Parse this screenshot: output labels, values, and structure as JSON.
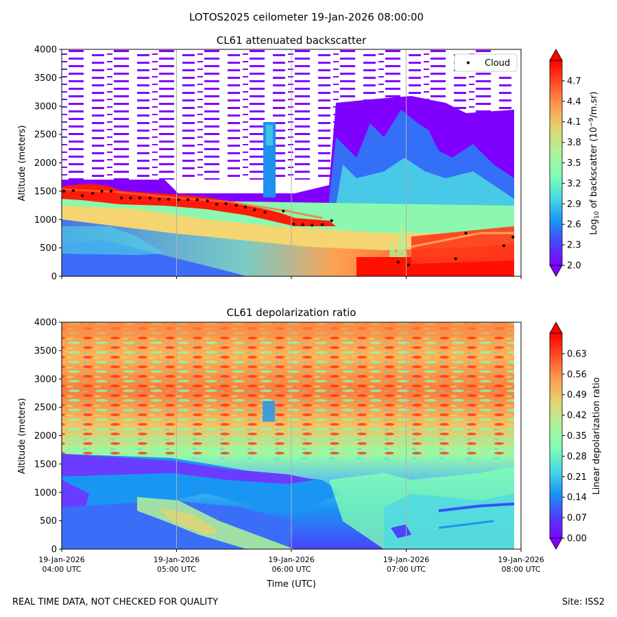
{
  "figure": {
    "suptitle": "LOTOS2025 ceilometer 19-Jan-2026 08:00:00",
    "footer_left": "REAL TIME DATA, NOT CHECKED FOR QUALITY",
    "footer_right": "Site: ISS2",
    "xlabel": "Time (UTC)"
  },
  "colors": {
    "rainbow": [
      "#8000ff",
      "#4a44fc",
      "#1996f3",
      "#4cd8e4",
      "#80ffb4",
      "#b2f396",
      "#e5d36f",
      "#ff9a4d",
      "#ff4d27",
      "#ff0000"
    ],
    "cloud_marker": "#000000",
    "grid": "#b0b0b0"
  },
  "chart_data": [
    {
      "type": "heatmap",
      "title": "CL61 attenuated backscatter",
      "ylabel": "Altitude (meters)",
      "xlabel": "",
      "x_ticks": [
        "19-Jan-2026\n04:00 UTC",
        "19-Jan-2026\n05:00 UTC",
        "19-Jan-2026\n06:00 UTC",
        "19-Jan-2026\n07:00 UTC",
        "19-Jan-2026\n08:00 UTC"
      ],
      "x_tick_hours": [
        4,
        5,
        6,
        7,
        8
      ],
      "xlim_hours": [
        4,
        8
      ],
      "y_ticks": [
        0,
        500,
        1000,
        1500,
        2000,
        2500,
        3000,
        3500,
        4000
      ],
      "ylim": [
        0,
        4000
      ],
      "colorbar": {
        "label": "Log10 of backscatter (10^-9/m.sr)",
        "ticks": [
          2.0,
          2.3,
          2.6,
          2.9,
          3.2,
          3.5,
          3.8,
          4.1,
          4.4,
          4.7
        ],
        "range": [
          2.0,
          5.0
        ],
        "extend": "both"
      },
      "legend": {
        "entries": [
          "Cloud"
        ],
        "location": "top-right"
      },
      "cloud_base": {
        "time_hours": [
          4.02,
          4.1,
          4.18,
          4.27,
          4.35,
          4.43,
          4.52,
          4.6,
          4.68,
          4.77,
          4.85,
          4.93,
          5.02,
          5.1,
          5.18,
          5.27,
          5.35,
          5.43,
          5.52,
          5.6,
          5.68,
          5.77,
          5.93,
          6.02,
          6.1,
          6.18,
          6.27,
          6.35,
          6.35,
          6.02,
          6.93,
          7.02,
          7.43,
          7.52,
          7.85,
          7.93
        ],
        "altitude_m": [
          1500,
          1510,
          1420,
          1460,
          1500,
          1500,
          1380,
          1380,
          1380,
          1380,
          1360,
          1360,
          1350,
          1350,
          1350,
          1330,
          1270,
          1280,
          1250,
          1220,
          1170,
          1130,
          1150,
          920,
          910,
          900,
          910,
          980,
          980,
          920,
          250,
          200,
          310,
          760,
          540,
          690
        ]
      }
    },
    {
      "type": "heatmap",
      "title": "CL61 depolarization ratio",
      "ylabel": "Altitude (meters)",
      "xlabel": "Time (UTC)",
      "x_ticks": [
        "19-Jan-2026\n04:00 UTC",
        "19-Jan-2026\n05:00 UTC",
        "19-Jan-2026\n06:00 UTC",
        "19-Jan-2026\n07:00 UTC",
        "19-Jan-2026\n08:00 UTC"
      ],
      "x_tick_hours": [
        4,
        5,
        6,
        7,
        8
      ],
      "xlim_hours": [
        4,
        8
      ],
      "y_ticks": [
        0,
        500,
        1000,
        1500,
        2000,
        2500,
        3000,
        3500,
        4000
      ],
      "ylim": [
        0,
        4000
      ],
      "colorbar": {
        "label": "Linear depolarization ratio",
        "ticks": [
          0.0,
          0.07,
          0.14,
          0.21,
          0.28,
          0.35,
          0.42,
          0.49,
          0.56,
          0.63
        ],
        "tick_labels": [
          "0.00",
          "0.07",
          "0.14",
          "0.21",
          "0.28",
          "0.35",
          "0.42",
          "0.49",
          "0.56",
          "0.63"
        ],
        "range": [
          0.0,
          0.7
        ],
        "extend": "both"
      }
    }
  ]
}
